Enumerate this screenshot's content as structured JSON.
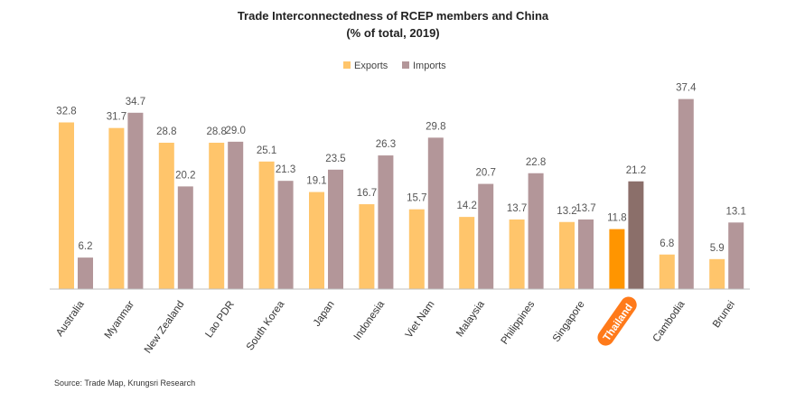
{
  "chart_data": {
    "type": "bar",
    "title": "Trade Interconnectedness of RCEP members and China",
    "subtitle": "(% of total, 2019)",
    "categories": [
      "Australia",
      "Myanmar",
      "New Zealand",
      "Lao PDR",
      "South Korea",
      "Japan",
      "Indonesia",
      "Viet Nam",
      "Malaysia",
      "Philippines",
      "Singapore",
      "Thailand",
      "Cambodia",
      "Brunei"
    ],
    "series": [
      {
        "name": "Exports",
        "values": [
          32.8,
          31.7,
          28.8,
          28.8,
          25.1,
          19.1,
          16.7,
          15.7,
          14.2,
          13.7,
          13.2,
          11.8,
          6.8,
          5.9
        ]
      },
      {
        "name": "Imports",
        "values": [
          6.2,
          34.7,
          20.2,
          29.0,
          21.3,
          23.5,
          26.3,
          29.8,
          20.7,
          22.8,
          13.7,
          21.2,
          37.4,
          13.1
        ]
      }
    ],
    "value_labels": {
      "Exports": [
        "32.8",
        "31.7",
        "28.8",
        "28.8",
        "25.1",
        "19.1",
        "16.7",
        "15.7",
        "14.2",
        "13.7",
        "13.2",
        "11.8",
        "6.8",
        "5.9"
      ],
      "Imports": [
        "6.2",
        "34.7",
        "20.2",
        "29.0",
        "21.3",
        "23.5",
        "26.3",
        "29.8",
        "20.7",
        "22.8",
        "13.7",
        "21.2",
        "37.4",
        "13.1"
      ]
    },
    "highlight_category": "Thailand",
    "ylim": [
      0,
      40
    ],
    "grid": false,
    "legend_position": "top-center",
    "colors": {
      "exports": "#FFC56B",
      "imports": "#B39699",
      "exports_highlight": "#FF9500",
      "imports_highlight": "#8B6F6A",
      "highlight_label_bg": "#FF7A1A"
    }
  },
  "source": "Source: Trade Map, Krungsri Research"
}
